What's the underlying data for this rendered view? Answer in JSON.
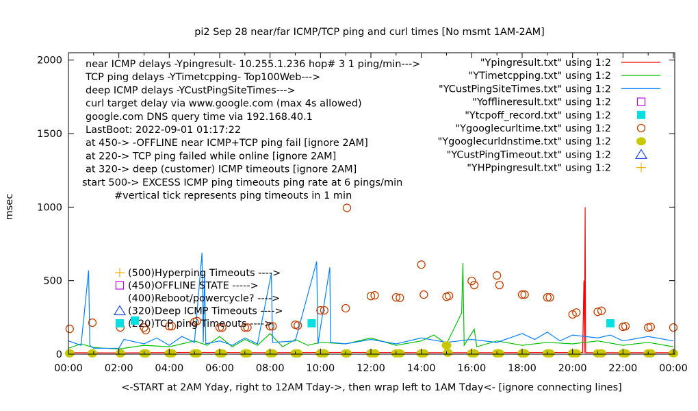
{
  "chart_data": {
    "type": "line",
    "title": "pi2 Sep 28  near/far ICMP/TCP ping and curl times [No msmt 1AM-2AM]",
    "xlabel": "<-START at 2AM Yday, right to 12AM Tday->, then wrap left to 1AM Tday<- [ignore connecting lines]",
    "ylabel": "msec",
    "xlim": [
      0,
      24
    ],
    "ylim": [
      0,
      2050
    ],
    "grid": false,
    "legend_position": "top-right",
    "x_ticks": [
      "00:00",
      "02:00",
      "04:00",
      "06:00",
      "08:00",
      "10:00",
      "12:00",
      "14:00",
      "16:00",
      "18:00",
      "20:00",
      "22:00",
      "00:00"
    ],
    "y_ticks": [
      "0",
      "500",
      "1000",
      "1500",
      "2000"
    ],
    "notes": [
      "near ICMP delays -Ypingresult- 10.255.1.236 hop# 3 1 ping/min--->",
      "TCP ping delays -YTimetcpping- Top100Web--->",
      "deep ICMP delays -YCustPingSiteTimes--->",
      "curl target delay via www.google.com (max 4s allowed)",
      "google.com DNS query time via 192.168.40.1",
      "LastBoot: 2022-09-01 01:17:22",
      "at 450-> -OFFLINE near ICMP+TCP ping fail [ignore 2AM]",
      "at 220-> TCP ping failed while online [ignore 2AM]",
      "at 320-> deep (customer) ICMP timeouts [ignore 2AM]",
      "start 500-> EXCESS ICMP ping timeouts ping rate at 6 pings/min",
      "#vertical tick represents ping timeouts in 1 min"
    ],
    "inner_labels": [
      "(500)Hyperping Timeouts ---->",
      "(450)OFFLINE STATE ----->",
      "(400)Reboot/powercycle? ---->",
      "(320)Deep ICMP Timeouts ---->",
      "(220)TCP ping Timeouts ---->"
    ],
    "series": [
      {
        "name": "\"Ypingresult.txt\" using 1:2",
        "style": "line",
        "color": "#ff0000",
        "points": [
          [
            0,
            10
          ],
          [
            2,
            8
          ],
          [
            5,
            12
          ],
          [
            8,
            10
          ],
          [
            11,
            12
          ],
          [
            14,
            10
          ],
          [
            17,
            10
          ],
          [
            20.4,
            12
          ],
          [
            20.45,
            500
          ],
          [
            20.47,
            10
          ],
          [
            20.5,
            1000
          ],
          [
            20.52,
            10
          ],
          [
            22,
            10
          ],
          [
            24,
            10
          ]
        ]
      },
      {
        "name": "\"YTimetcpping.txt\" using 1:2",
        "style": "line",
        "color": "#00c000",
        "points": [
          [
            0,
            40
          ],
          [
            0.5,
            70
          ],
          [
            1,
            45
          ],
          [
            1.5,
            40
          ],
          [
            2,
            35
          ],
          [
            3,
            60
          ],
          [
            4,
            50
          ],
          [
            5,
            90
          ],
          [
            5.5,
            60
          ],
          [
            6,
            120
          ],
          [
            6.5,
            50
          ],
          [
            7,
            100
          ],
          [
            7.5,
            60
          ],
          [
            8,
            140
          ],
          [
            8.5,
            50
          ],
          [
            9,
            100
          ],
          [
            9.5,
            60
          ],
          [
            10,
            80
          ],
          [
            11,
            70
          ],
          [
            12,
            110
          ],
          [
            13,
            60
          ],
          [
            14,
            90
          ],
          [
            14.5,
            130
          ],
          [
            15,
            70
          ],
          [
            15.6,
            280
          ],
          [
            15.65,
            620
          ],
          [
            15.7,
            60
          ],
          [
            16.1,
            170
          ],
          [
            16.2,
            50
          ],
          [
            17,
            90
          ],
          [
            18,
            60
          ],
          [
            19,
            80
          ],
          [
            20,
            70
          ],
          [
            21,
            90
          ],
          [
            22,
            60
          ],
          [
            23,
            80
          ],
          [
            24,
            50
          ]
        ]
      },
      {
        "name": "\"YCustPingSiteTimes.txt\" using 1:2",
        "style": "line",
        "color": "#0080ff",
        "points": [
          [
            0,
            90
          ],
          [
            0.5,
            60
          ],
          [
            0.8,
            570
          ],
          [
            0.85,
            60
          ],
          [
            1,
            40
          ],
          [
            2,
            40
          ],
          [
            2.2,
            100
          ],
          [
            3,
            70
          ],
          [
            3.5,
            110
          ],
          [
            4,
            60
          ],
          [
            4.5,
            120
          ],
          [
            5,
            80
          ],
          [
            5.3,
            690
          ],
          [
            5.35,
            80
          ],
          [
            5.4,
            560
          ],
          [
            5.45,
            70
          ],
          [
            6,
            90
          ],
          [
            6.5,
            60
          ],
          [
            7,
            110
          ],
          [
            7.5,
            70
          ],
          [
            8.05,
            550
          ],
          [
            8.1,
            80
          ],
          [
            9,
            90
          ],
          [
            9.85,
            630
          ],
          [
            9.9,
            70
          ],
          [
            10.37,
            590
          ],
          [
            10.4,
            80
          ],
          [
            11,
            70
          ],
          [
            12,
            100
          ],
          [
            13,
            70
          ],
          [
            14,
            110
          ],
          [
            15,
            80
          ],
          [
            16,
            100
          ],
          [
            17,
            80
          ],
          [
            18,
            140
          ],
          [
            18.5,
            100
          ],
          [
            19,
            150
          ],
          [
            19.5,
            90
          ],
          [
            20,
            130
          ],
          [
            21,
            110
          ],
          [
            21.5,
            130
          ],
          [
            22,
            90
          ],
          [
            23,
            120
          ],
          [
            24,
            90
          ]
        ]
      },
      {
        "name": "\"Yofflineresult.txt\" using 1:2",
        "style": "open-square",
        "color": "#c000ff",
        "points": []
      },
      {
        "name": "\"Ytcpoff_record.txt\" using 1:2",
        "style": "filled-square",
        "color": "#00e0e0",
        "points": [
          [
            9.65,
            210
          ],
          [
            21.5,
            210
          ]
        ]
      },
      {
        "name": "\"Ygooglecurltime.txt\" using 1:2",
        "style": "open-circle",
        "color": "#c04000",
        "points": [
          [
            0.05,
            172
          ],
          [
            0.95,
            214
          ],
          [
            2.06,
            181
          ],
          [
            3.0,
            181
          ],
          [
            3.07,
            163
          ],
          [
            4.0,
            190
          ],
          [
            4.1,
            190
          ],
          [
            5.0,
            219
          ],
          [
            5.1,
            225
          ],
          [
            6.0,
            181
          ],
          [
            6.1,
            181
          ],
          [
            7.0,
            181
          ],
          [
            7.1,
            181
          ],
          [
            8.0,
            190
          ],
          [
            8.1,
            190
          ],
          [
            9.0,
            200
          ],
          [
            9.1,
            195
          ],
          [
            10.0,
            298
          ],
          [
            10.15,
            298
          ],
          [
            11.0,
            312
          ],
          [
            11.05,
            995
          ],
          [
            12.0,
            395
          ],
          [
            12.15,
            400
          ],
          [
            13.0,
            386
          ],
          [
            13.15,
            383
          ],
          [
            14.0,
            609
          ],
          [
            14.1,
            405
          ],
          [
            15.0,
            390
          ],
          [
            15.1,
            397
          ],
          [
            16.0,
            498
          ],
          [
            16.1,
            470
          ],
          [
            17.0,
            535
          ],
          [
            17.1,
            470
          ],
          [
            18.0,
            405
          ],
          [
            18.1,
            405
          ],
          [
            19.0,
            386
          ],
          [
            19.1,
            386
          ],
          [
            20.0,
            270
          ],
          [
            20.15,
            283
          ],
          [
            21.0,
            288
          ],
          [
            21.15,
            295
          ],
          [
            22.0,
            186
          ],
          [
            22.1,
            190
          ],
          [
            23.0,
            181
          ],
          [
            23.1,
            185
          ],
          [
            24.0,
            181
          ]
        ]
      },
      {
        "name": "\"Ygooglecurldnstime.txt\" using 1:2",
        "style": "filled-circle",
        "color": "#c8c800",
        "points": [
          [
            0.05,
            5
          ],
          [
            0.95,
            5
          ],
          [
            2.06,
            5
          ],
          [
            3.0,
            5
          ],
          [
            3.07,
            5
          ],
          [
            4.0,
            5
          ],
          [
            4.1,
            5
          ],
          [
            5.0,
            5
          ],
          [
            5.1,
            5
          ],
          [
            6.0,
            5
          ],
          [
            6.1,
            5
          ],
          [
            7.0,
            5
          ],
          [
            7.1,
            5
          ],
          [
            8.0,
            5
          ],
          [
            8.1,
            5
          ],
          [
            9.0,
            5
          ],
          [
            9.1,
            5
          ],
          [
            10.0,
            5
          ],
          [
            10.15,
            5
          ],
          [
            11.0,
            5
          ],
          [
            11.05,
            5
          ],
          [
            12.0,
            5
          ],
          [
            12.15,
            5
          ],
          [
            13.0,
            5
          ],
          [
            13.15,
            5
          ],
          [
            14.0,
            5
          ],
          [
            14.1,
            5
          ],
          [
            15.0,
            60
          ],
          [
            15.05,
            10
          ],
          [
            16.0,
            5
          ],
          [
            16.1,
            5
          ],
          [
            17.0,
            5
          ],
          [
            17.1,
            5
          ],
          [
            18.0,
            5
          ],
          [
            18.1,
            5
          ],
          [
            19.0,
            5
          ],
          [
            19.1,
            5
          ],
          [
            20.0,
            5
          ],
          [
            20.15,
            5
          ],
          [
            21.0,
            5
          ],
          [
            21.15,
            5
          ],
          [
            22.0,
            5
          ],
          [
            22.1,
            5
          ],
          [
            23.0,
            5
          ],
          [
            23.1,
            5
          ],
          [
            24.0,
            5
          ]
        ]
      },
      {
        "name": "\"YCustPingTimeout.txt\" using 1:2",
        "style": "open-triangle",
        "color": "#2050e0",
        "points": []
      },
      {
        "name": "\"YHPpingresult.txt\" using 1:2",
        "style": "plus",
        "color": "#ffb000",
        "points": []
      }
    ]
  }
}
